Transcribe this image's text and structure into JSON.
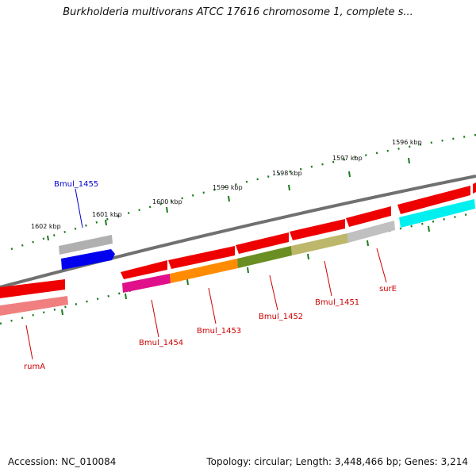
{
  "title": "Burkholderia multivorans ATCC 17616 chromosome 1, complete s...",
  "footer": {
    "accession": "Accession: NC_010084",
    "topology": "Topology: circular; Length: 3,448,466 bp; Genes: 3,214"
  },
  "colors": {
    "tick": "#1a7a1a",
    "label_red": "#cc0000",
    "label_blue": "#0000cc",
    "backbone": "#808080"
  },
  "ticks": [
    {
      "label": "1602 kbp"
    },
    {
      "label": "1601 kbp"
    },
    {
      "label": "1600 kbp"
    },
    {
      "label": "1599 kbp"
    },
    {
      "label": "1598 kbp"
    },
    {
      "label": "1597 kbp"
    },
    {
      "label": "1596 kbp"
    }
  ],
  "genes": [
    {
      "label": "Bmul_1455",
      "color": "#0000ee"
    },
    {
      "label": "Bmul_1454",
      "color": "#e0108a"
    },
    {
      "label": "Bmul_1453",
      "color": "#ff8c00"
    },
    {
      "label": "Bmul_1452",
      "color": "#6b8e23"
    },
    {
      "label": "Bmul_1451",
      "color": "#bdb76b"
    },
    {
      "label": "surE",
      "color": "#c0c0c0"
    },
    {
      "label": "rumA",
      "color": "#f08080"
    }
  ]
}
